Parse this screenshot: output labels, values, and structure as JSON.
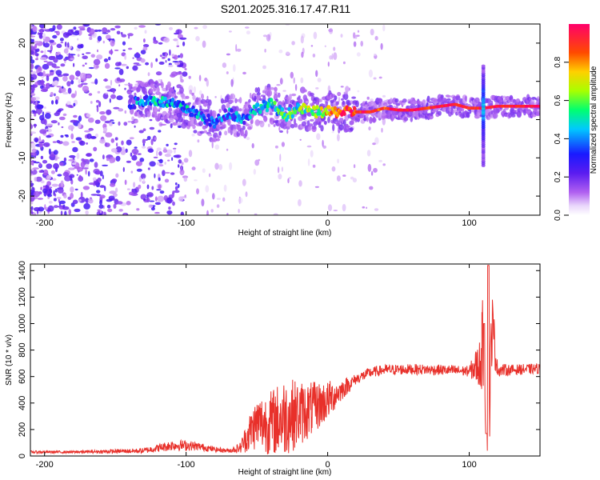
{
  "figure_title": "S201.2025.316.17.47.R11",
  "chart_data": [
    {
      "type": "heatmap",
      "title": "S201.2025.316.17.47.R11",
      "xlabel": "Height of straight line (km)",
      "ylabel": "Frequency (Hz)",
      "xlim": [
        -210,
        150
      ],
      "ylim": [
        -25,
        25
      ],
      "xticks": [
        -200,
        -100,
        0,
        100
      ],
      "xtick_labels": [
        "-200",
        "-100",
        "0",
        "100"
      ],
      "yticks": [
        -20,
        -10,
        0,
        10,
        20
      ],
      "ytick_labels": [
        "-20",
        "-10",
        "0",
        "10",
        "20"
      ],
      "grid": false,
      "colorbar": {
        "label": "Normalized spectral amplitude",
        "range": [
          0,
          1
        ],
        "ticks": [
          0.0,
          0.2,
          0.4,
          0.6,
          0.8
        ],
        "tick_labels": [
          "0.0",
          "0.2",
          "0.4",
          "0.6",
          "0.8"
        ],
        "colormap": [
          "#ffffff",
          "#d9b8f5",
          "#8a2be2",
          "#3300ff",
          "#00ccff",
          "#00ff66",
          "#aaff00",
          "#ffd000",
          "#ff4000",
          "#ff0066"
        ]
      },
      "ridge": {
        "description_points_x_km": [
          -140,
          -130,
          -120,
          -110,
          -100,
          -90,
          -80,
          -70,
          -60,
          -50,
          -40,
          -30,
          -20,
          -10,
          0,
          10,
          20,
          30,
          40,
          50,
          60,
          70,
          80,
          90,
          100,
          110,
          120,
          130,
          140,
          150
        ],
        "frequency_hz": [
          4,
          5,
          5,
          4,
          3,
          1,
          -1,
          2,
          0,
          3,
          4,
          1,
          3,
          2,
          2,
          2,
          2,
          2,
          3,
          2.5,
          2.5,
          3,
          3.5,
          4,
          3,
          3,
          3.5,
          3.5,
          3.5,
          3.5
        ],
        "amplitude": [
          0.25,
          0.35,
          0.4,
          0.4,
          0.35,
          0.3,
          0.25,
          0.3,
          0.3,
          0.35,
          0.4,
          0.45,
          0.5,
          0.55,
          0.7,
          0.85,
          0.85,
          0.85,
          0.8,
          0.9,
          0.9,
          0.85,
          0.9,
          0.9,
          0.85,
          0.9,
          0.9,
          0.9,
          0.9,
          0.9
        ]
      }
    },
    {
      "type": "line",
      "xlabel": "Height of straight line (km)",
      "ylabel": "SNR (10 * v/v)",
      "xlim": [
        -210,
        150
      ],
      "ylim": [
        0,
        1450
      ],
      "xticks": [
        -200,
        -100,
        0,
        100
      ],
      "xtick_labels": [
        "-200",
        "-100",
        "0",
        "100"
      ],
      "yticks": [
        0,
        200,
        400,
        600,
        800,
        1000,
        1200,
        1400
      ],
      "ytick_labels": [
        "0",
        "200",
        "400",
        "600",
        "800",
        "1000",
        "1200",
        "1400"
      ],
      "grid": false,
      "series": [
        {
          "name": "SNR",
          "color": "#e8302a",
          "envelope_x_km": [
            -210,
            -180,
            -150,
            -130,
            -120,
            -110,
            -100,
            -90,
            -80,
            -70,
            -62,
            -55,
            -50,
            -40,
            -30,
            -20,
            -10,
            0,
            10,
            20,
            30,
            40,
            60,
            80,
            100,
            108,
            110,
            112,
            114,
            116,
            120,
            130,
            150
          ],
          "envelope_mean": [
            30,
            30,
            35,
            40,
            60,
            80,
            80,
            70,
            50,
            40,
            60,
            180,
            250,
            250,
            300,
            320,
            360,
            420,
            500,
            580,
            630,
            650,
            655,
            650,
            640,
            700,
            900,
            500,
            200,
            1000,
            650,
            650,
            660
          ],
          "envelope_amplitude": [
            10,
            10,
            15,
            20,
            30,
            40,
            40,
            30,
            20,
            15,
            40,
            150,
            200,
            250,
            300,
            250,
            200,
            150,
            80,
            40,
            40,
            40,
            40,
            40,
            40,
            200,
            400,
            400,
            300,
            300,
            50,
            40,
            40
          ]
        }
      ]
    }
  ]
}
